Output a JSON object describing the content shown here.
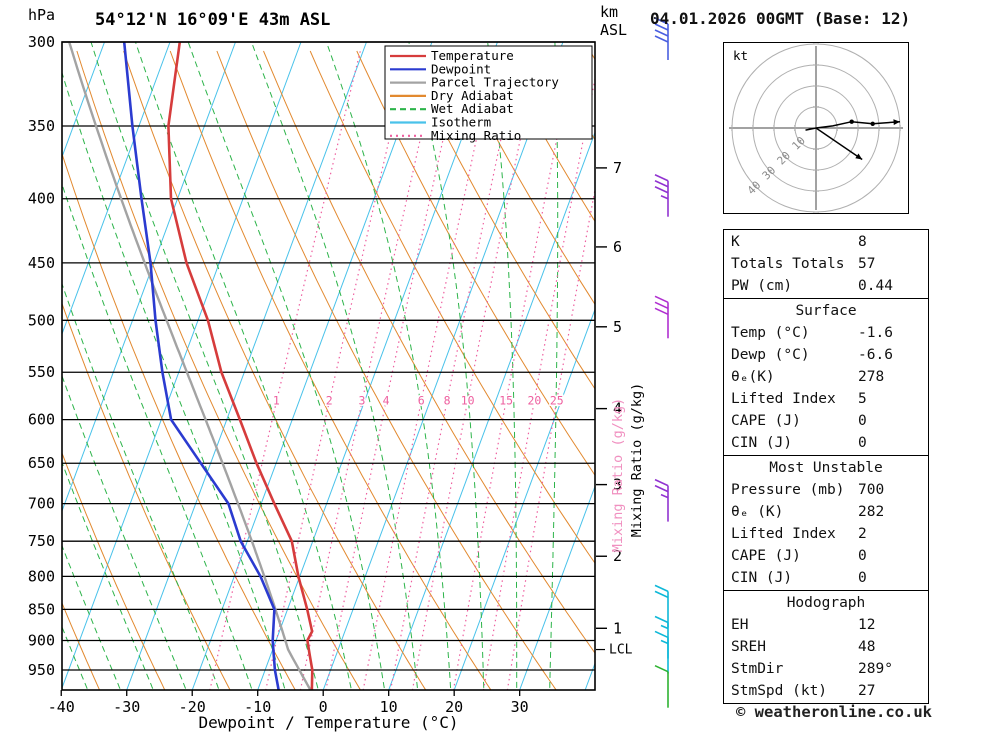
{
  "header": {
    "title": "54°12'N 16°09'E 43m ASL",
    "date_label": "04.01.2026 00GMT (Base: 12)",
    "pressure_unit": "hPa",
    "altitude_axis_line1": "km",
    "altitude_axis_line2": "ASL"
  },
  "legend": {
    "items": [
      {
        "label": "Temperature",
        "color": "#d63c3c",
        "dash": ""
      },
      {
        "label": "Dewpoint",
        "color": "#2b3bd0",
        "dash": ""
      },
      {
        "label": "Parcel Trajectory",
        "color": "#a3a3a3",
        "dash": ""
      },
      {
        "label": "Dry Adiabat",
        "color": "#e2892f",
        "dash": ""
      },
      {
        "label": "Wet Adiabat",
        "color": "#2db44a",
        "dash": "6,4"
      },
      {
        "label": "Isotherm",
        "color": "#49c2ea",
        "dash": ""
      },
      {
        "label": "Mixing Ratio",
        "color": "#ee5f9f",
        "dash": "2,4"
      }
    ]
  },
  "axis_labels": {
    "x": "Dewpoint / Temperature (°C)",
    "mixing_ratio_black": "Mixing Ratio (g/kg)",
    "mixing_ratio_pink": "Mixing Ratio (g/kg)",
    "lcl": "LCL"
  },
  "chart_data": {
    "type": "line",
    "variant": "skew-t-log-p sounding",
    "pressure_ticks_hpa": [
      300,
      350,
      400,
      450,
      500,
      550,
      600,
      650,
      700,
      750,
      800,
      850,
      900,
      950
    ],
    "temp_ticks_c": [
      -40,
      -30,
      -20,
      -10,
      0,
      10,
      20,
      30
    ],
    "pressure_range_hpa": [
      300,
      986
    ],
    "temperature_profile": [
      [
        990,
        -1.6
      ],
      [
        950,
        -2.8
      ],
      [
        925,
        -4.0
      ],
      [
        900,
        -5.2
      ],
      [
        885,
        -5.0
      ],
      [
        850,
        -7.0
      ],
      [
        800,
        -10.2
      ],
      [
        750,
        -13.2
      ],
      [
        700,
        -18.0
      ],
      [
        650,
        -23.0
      ],
      [
        600,
        -28.0
      ],
      [
        550,
        -33.5
      ],
      [
        500,
        -38.5
      ],
      [
        450,
        -45.0
      ],
      [
        400,
        -51.0
      ],
      [
        350,
        -55.5
      ],
      [
        300,
        -58.5
      ]
    ],
    "dewpoint_profile": [
      [
        990,
        -6.6
      ],
      [
        950,
        -8.5
      ],
      [
        925,
        -9.5
      ],
      [
        900,
        -10.5
      ],
      [
        850,
        -12.0
      ],
      [
        800,
        -16.0
      ],
      [
        750,
        -21.0
      ],
      [
        700,
        -25.0
      ],
      [
        650,
        -31.5
      ],
      [
        600,
        -38.5
      ],
      [
        550,
        -42.5
      ],
      [
        500,
        -46.5
      ],
      [
        450,
        -50.5
      ],
      [
        400,
        -55.5
      ],
      [
        350,
        -61.0
      ],
      [
        300,
        -67.0
      ]
    ],
    "parcel": {
      "surface_p_hpa": 990,
      "surface_temp_c": -1.6,
      "lcl_p_hpa": 915
    },
    "background": {
      "isotherms_c": {
        "from": -70,
        "to": 40,
        "step": 10
      },
      "dry_adiabats_k": {
        "from": 240,
        "to": 400,
        "step": 10
      },
      "wet_adiabats_c": {
        "from": -35,
        "to": 35,
        "step": 5
      },
      "mixing_ratio_gkg": [
        1,
        2,
        3,
        4,
        6,
        8,
        10,
        15,
        20,
        25
      ],
      "mixing_label_p_hpa": 588
    },
    "km_ticks": [
      {
        "km": "7",
        "p": 378
      },
      {
        "km": "6",
        "p": 437
      },
      {
        "km": "5",
        "p": 506
      },
      {
        "km": "4",
        "p": 588
      },
      {
        "km": "3",
        "p": 676
      },
      {
        "km": "2",
        "p": 771
      },
      {
        "km": "1",
        "p": 880
      }
    ],
    "lcl_marker_p_hpa": 915,
    "wind_barbs": [
      {
        "p": 300,
        "speed_kt": 40,
        "color": "#4a5fe0"
      },
      {
        "p": 400,
        "speed_kt": 35,
        "color": "#9133d1"
      },
      {
        "p": 500,
        "speed_kt": 30,
        "color": "#b02fd0"
      },
      {
        "p": 700,
        "speed_kt": 25,
        "color": "#9133d1"
      },
      {
        "p": 850,
        "speed_kt": 20,
        "color": "#0fb8d8"
      },
      {
        "p": 900,
        "speed_kt": 15,
        "color": "#0fb8d8"
      },
      {
        "p": 925,
        "speed_kt": 15,
        "color": "#0fb8d8"
      },
      {
        "p": 985,
        "speed_kt": 10,
        "color": "#2eb332"
      }
    ]
  },
  "hodograph": {
    "unit": "kt",
    "rings_kt": [
      10,
      20,
      30,
      40
    ],
    "trace_kt": [
      [
        -5,
        1
      ],
      [
        0,
        0
      ],
      [
        8,
        -1
      ],
      [
        17,
        -3
      ],
      [
        27,
        -2
      ],
      [
        40,
        -3
      ]
    ],
    "dots_kt": [
      [
        17,
        -3
      ],
      [
        27,
        -2
      ]
    ],
    "storm_motion_kt": [
      22,
      15
    ]
  },
  "stats": {
    "sections": [
      {
        "header": null,
        "rows": [
          [
            "K",
            "8"
          ],
          [
            "Totals Totals",
            "57"
          ],
          [
            "PW (cm)",
            "0.44"
          ]
        ]
      },
      {
        "header": "Surface",
        "rows": [
          [
            "Temp (°C)",
            "-1.6"
          ],
          [
            "Dewp (°C)",
            "-6.6"
          ],
          [
            "θₑ(K)",
            "278"
          ],
          [
            "Lifted Index",
            "5"
          ],
          [
            "CAPE (J)",
            "0"
          ],
          [
            "CIN (J)",
            "0"
          ]
        ]
      },
      {
        "header": "Most Unstable",
        "rows": [
          [
            "Pressure (mb)",
            "700"
          ],
          [
            "θₑ (K)",
            "282"
          ],
          [
            "Lifted Index",
            "2"
          ],
          [
            "CAPE (J)",
            "0"
          ],
          [
            "CIN (J)",
            "0"
          ]
        ]
      },
      {
        "header": "Hodograph",
        "rows": [
          [
            "EH",
            "12"
          ],
          [
            "SREH",
            "48"
          ],
          [
            "StmDir",
            "289°"
          ],
          [
            "StmSpd (kt)",
            "27"
          ]
        ]
      }
    ]
  },
  "footer": {
    "copyright": "© weatheronline.co.uk"
  }
}
